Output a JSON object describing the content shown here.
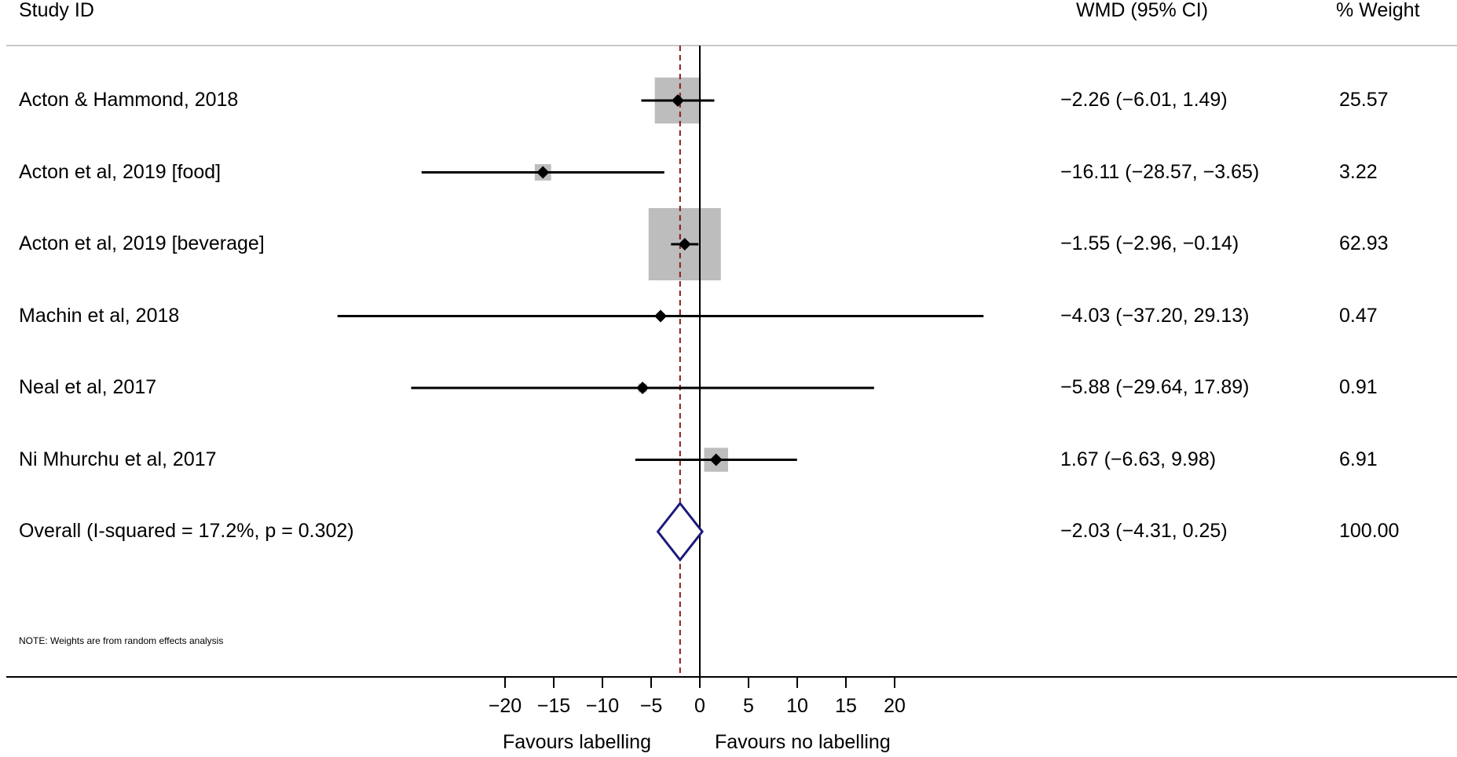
{
  "header": {
    "study_label": "Study ID",
    "effect_label": "WMD (95% CI)",
    "weight_label": "% Weight"
  },
  "chart_data": {
    "type": "forest",
    "x_ticks": [
      -20,
      -15,
      -10,
      -5,
      0,
      5,
      10,
      15,
      20
    ],
    "x_tick_labels": [
      "−20",
      "−15",
      "−10",
      "−5",
      "0",
      "5",
      "10",
      "15",
      "20"
    ],
    "null_line": 0,
    "pooled_line": -2.03,
    "studies": [
      {
        "name": "Acton & Hammond, 2018",
        "wmd": -2.26,
        "lo": -6.01,
        "hi": 1.49,
        "weight": 25.57,
        "effect_text": "−2.26 (−6.01, 1.49)",
        "weight_text": "25.57"
      },
      {
        "name": "Acton et al, 2019 [food]",
        "wmd": -16.11,
        "lo": -28.57,
        "hi": -3.65,
        "weight": 3.22,
        "effect_text": "−16.11 (−28.57, −3.65)",
        "weight_text": "3.22"
      },
      {
        "name": "Acton et al, 2019 [beverage]",
        "wmd": -1.55,
        "lo": -2.96,
        "hi": -0.14,
        "weight": 62.93,
        "effect_text": "−1.55 (−2.96, −0.14)",
        "weight_text": "62.93"
      },
      {
        "name": "Machin et al, 2018",
        "wmd": -4.03,
        "lo": -37.2,
        "hi": 29.13,
        "weight": 0.47,
        "effect_text": "−4.03 (−37.20, 29.13)",
        "weight_text": "0.47"
      },
      {
        "name": "Neal et al, 2017",
        "wmd": -5.88,
        "lo": -29.64,
        "hi": 17.89,
        "weight": 0.91,
        "effect_text": "−5.88 (−29.64, 17.89)",
        "weight_text": "0.91"
      },
      {
        "name": "Ni Mhurchu et al, 2017",
        "wmd": 1.67,
        "lo": -6.63,
        "hi": 9.98,
        "weight": 6.91,
        "effect_text": "1.67 (−6.63, 9.98)",
        "weight_text": "6.91"
      }
    ],
    "overall": {
      "name": "Overall  (I-squared = 17.2%, p = 0.302)",
      "wmd": -2.03,
      "lo": -4.31,
      "hi": 0.25,
      "weight": 100.0,
      "effect_text": "−2.03 (−4.31, 0.25)",
      "weight_text": "100.00"
    },
    "note": "NOTE: Weights are from random effects analysis",
    "favours_left": "Favours labelling",
    "favours_right": "Favours no labelling",
    "colors": {
      "box": "#bdbdbd",
      "point": "#000000",
      "ci": "#000000",
      "diamond": "#1a1a7a",
      "pooled_line": "#8b1a1a",
      "rule": "#c8c8c8"
    }
  }
}
